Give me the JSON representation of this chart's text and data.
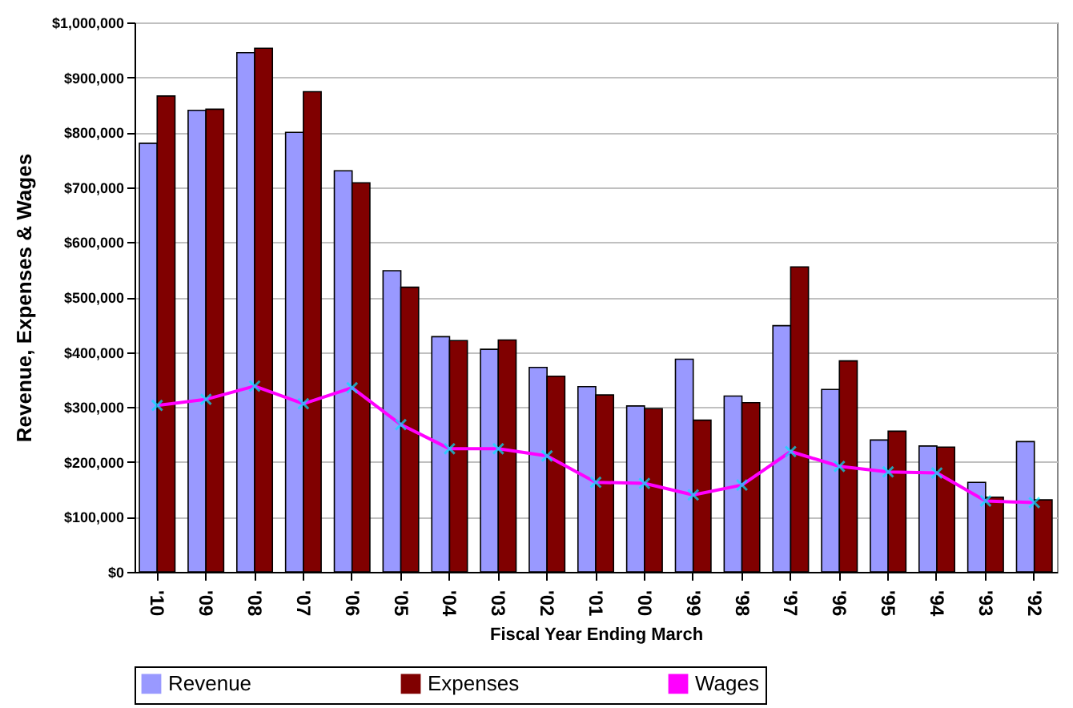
{
  "chart_data": {
    "type": "bar",
    "xlabel": "Fiscal Year Ending March",
    "ylabel": "Revenue, Expenses & Wages",
    "categories": [
      "'10",
      "'09",
      "'08",
      "'07",
      "'06",
      "'05",
      "'04",
      "'03",
      "'02",
      "'01",
      "'00",
      "'99",
      "'98",
      "'97",
      "'96",
      "'95",
      "'94",
      "'93",
      "'92"
    ],
    "series": [
      {
        "name": "Revenue",
        "color": "#9999ff",
        "values": [
          780000,
          840000,
          945000,
          800000,
          730000,
          548000,
          428000,
          405000,
          372000,
          337000,
          302000,
          387000,
          320000,
          448000,
          332000,
          240000,
          229000,
          163000,
          237000
        ]
      },
      {
        "name": "Expenses",
        "color": "#800000",
        "values": [
          866000,
          842000,
          953000,
          874000,
          708000,
          518000,
          421000,
          422000,
          356000,
          322000,
          297000,
          276000,
          308000,
          555000,
          384000,
          256000,
          227000,
          136000,
          131000
        ]
      },
      {
        "name": "Wages",
        "type": "line",
        "color": "#ff00ff",
        "marker": "cross",
        "values": [
          303000,
          314000,
          338000,
          306000,
          335000,
          268000,
          224000,
          224000,
          211000,
          163000,
          161000,
          140000,
          158000,
          219000,
          192000,
          182000,
          180000,
          129000,
          126000
        ]
      }
    ],
    "ylim": [
      0,
      1000000
    ],
    "yticks": [
      {
        "value": 0,
        "label": "$0"
      },
      {
        "value": 100000,
        "label": "$100,000"
      },
      {
        "value": 200000,
        "label": "$200,000"
      },
      {
        "value": 300000,
        "label": "$300,000"
      },
      {
        "value": 400000,
        "label": "$400,000"
      },
      {
        "value": 500000,
        "label": "$500,000"
      },
      {
        "value": 600000,
        "label": "$600,000"
      },
      {
        "value": 700000,
        "label": "$700,000"
      },
      {
        "value": 800000,
        "label": "$800,000"
      },
      {
        "value": 900000,
        "label": "$900,000"
      },
      {
        "value": 1000000,
        "label": "$1,000,000"
      }
    ],
    "grid": "y",
    "legend": "bottom"
  }
}
